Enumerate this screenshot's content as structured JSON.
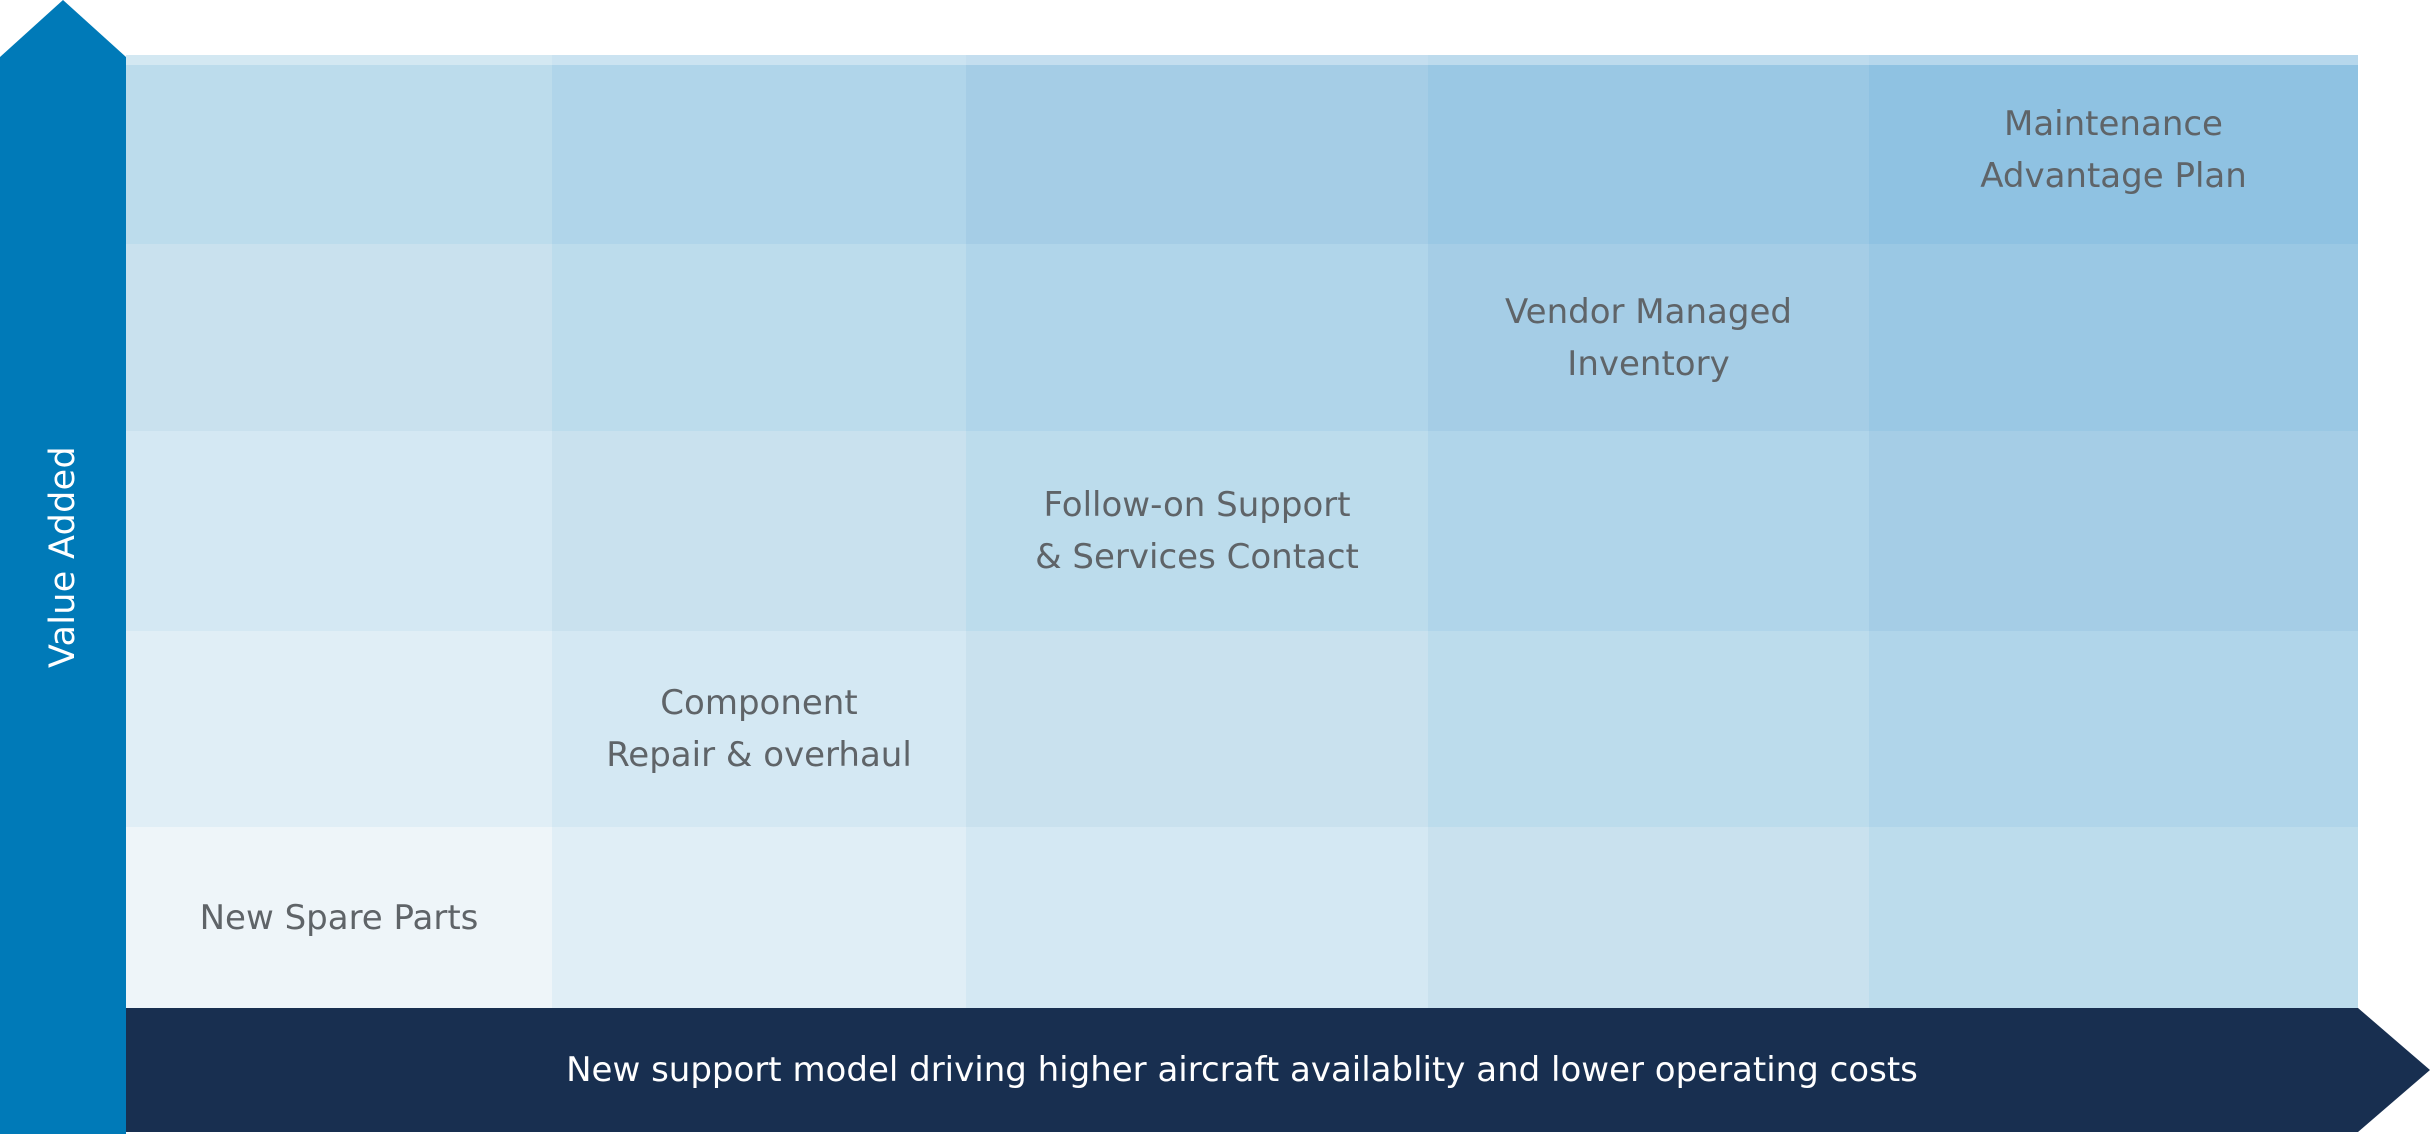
{
  "axes": {
    "y_label": "Value Added",
    "x_label": "New support model driving higher aircraft availablity and lower operating costs"
  },
  "colors": {
    "y_arrow": "#007ab8",
    "x_arrow": "#182f50",
    "label_text": "#5f6468",
    "axis_text": "#ffffff",
    "cell_shades": [
      "#eef5f9",
      "#e0eef6",
      "#d4e8f3",
      "#c9e1ee",
      "#bcdcec",
      "#b0d5ea",
      "#a5cde6",
      "#9ac8e4",
      "#8fc2e2"
    ]
  },
  "matrix": {
    "rows": 5,
    "columns": 5,
    "items": [
      {
        "label": "New Spare Parts",
        "row": 1,
        "col": 1
      },
      {
        "label": "Component\nRepair & overhaul",
        "row": 2,
        "col": 2
      },
      {
        "label": "Follow-on Support\n& Services Contact",
        "row": 3,
        "col": 3
      },
      {
        "label": "Vendor Managed\nInventory",
        "row": 4,
        "col": 4
      },
      {
        "label": "Maintenance\nAdvantage Plan",
        "row": 5,
        "col": 5
      }
    ]
  }
}
